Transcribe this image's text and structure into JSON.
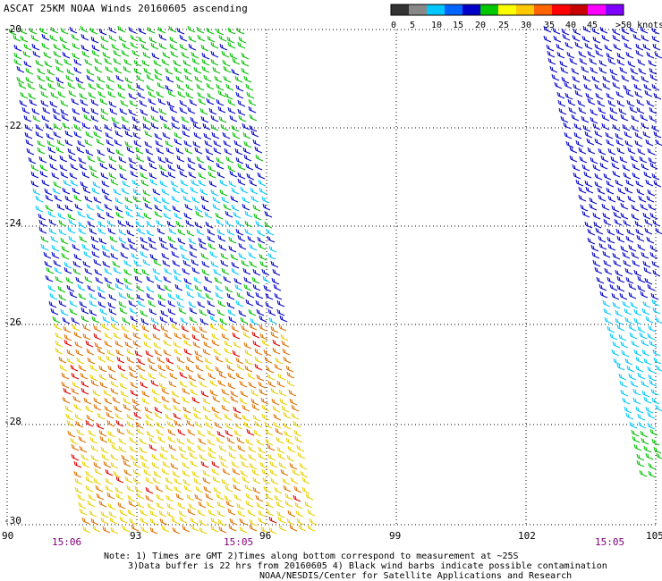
{
  "title": "ASCAT 25KM NOAA Winds 20160605 ascending",
  "legend": {
    "labels": [
      "0",
      "5",
      "10",
      "15",
      "20",
      "25",
      "30",
      "35",
      "40",
      "45",
      ">50 knots"
    ],
    "colors": [
      "#333333",
      "#888888",
      "#00c8ff",
      "#0064ff",
      "#0000c8",
      "#00c800",
      "#ffff00",
      "#ffc800",
      "#ff6400",
      "#ff0000",
      "#c80000",
      "#ff00ff",
      "#8000ff"
    ]
  },
  "axes": {
    "y_labels": [
      "-20",
      "-22",
      "-24",
      "-26",
      "-28",
      "-30"
    ],
    "x_labels": [
      "90",
      "93",
      "96",
      "99",
      "102",
      "105"
    ]
  },
  "pass_times": [
    "15:06",
    "15:05",
    "15:05"
  ],
  "notes": {
    "line1": "Note: 1) Times are GMT 2)Times along bottom correspond to measurement at ~25S",
    "line2": "3)Data buffer is 22 hrs from 20160605 4) Black wind barbs indicate possible contamination",
    "line3": "NOAA/NESDIS/Center for Satellite Applications and Research"
  },
  "colors": {
    "low": "#00c8ff",
    "med": "#0000c8",
    "green": "#00c000",
    "yellow": "#e8d000",
    "orange": "#e07000",
    "red": "#e00000",
    "purple_time": "#800080"
  }
}
